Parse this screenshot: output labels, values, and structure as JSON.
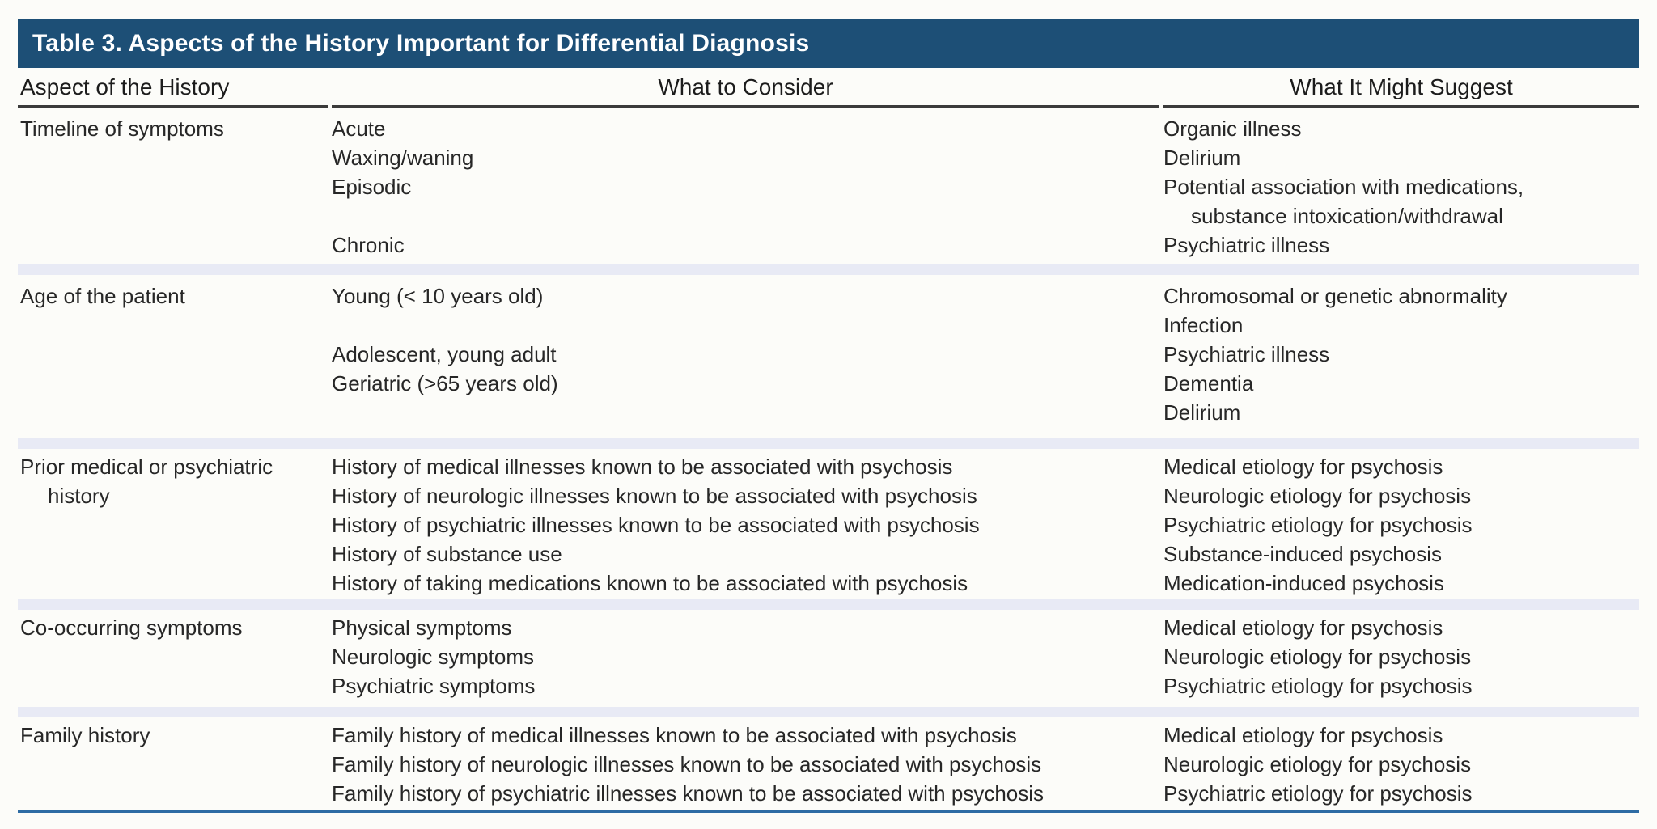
{
  "title": "Table 3. Aspects of the History Important for Differential Diagnosis",
  "columns": [
    "Aspect of the History",
    "What to Consider",
    "What It Might Suggest"
  ],
  "colors": {
    "title_bar": "#1d4f76",
    "title_text": "#ffffff",
    "row_divider": "#e8eaf5",
    "bottom_rule": "#2e6ca4",
    "header_rule": "#3b3b3b",
    "body_text": "#272727",
    "background": "#fcfcf9"
  },
  "rows": [
    {
      "aspect": [
        "Timeline of symptoms"
      ],
      "consider": [
        "Acute",
        "Waxing/waning",
        "Episodic",
        "",
        "Chronic"
      ],
      "suggest": [
        "Organic illness",
        "Delirium",
        "Potential association with medications,",
        {
          "t": "substance intoxication/withdrawal",
          "indent": true
        },
        "Psychiatric illness"
      ]
    },
    {
      "aspect": [
        "Age of the patient"
      ],
      "consider": [
        "Young (< 10 years old)",
        "",
        "Adolescent, young adult",
        "Geriatric (>65 years old)",
        ""
      ],
      "suggest": [
        "Chromosomal or genetic abnormality",
        "Infection",
        "Psychiatric illness",
        "Dementia",
        "Delirium"
      ]
    },
    {
      "aspect": [
        "Prior medical or psychiatric",
        {
          "t": "history",
          "indent": true
        }
      ],
      "consider": [
        "History of medical illnesses known to be associated with psychosis",
        "History of neurologic illnesses known to be associated with psychosis",
        "History of psychiatric illnesses known to be associated with psychosis",
        "History of substance use",
        "History of taking medications known to be associated with psychosis"
      ],
      "suggest": [
        "Medical etiology for psychosis",
        "Neurologic etiology for psychosis",
        "Psychiatric etiology for psychosis",
        "Substance-induced psychosis",
        "Medication-induced psychosis"
      ]
    },
    {
      "aspect": [
        "Co-occurring symptoms"
      ],
      "consider": [
        "Physical symptoms",
        "Neurologic symptoms",
        "Psychiatric symptoms"
      ],
      "suggest": [
        "Medical etiology for psychosis",
        "Neurologic etiology for psychosis",
        "Psychiatric etiology for psychosis"
      ]
    },
    {
      "aspect": [
        "Family history"
      ],
      "consider": [
        "Family history of medical illnesses known to be associated with psychosis",
        "Family history of neurologic illnesses known to be associated with psychosis",
        "Family history of psychiatric illnesses known to be associated with psychosis"
      ],
      "suggest": [
        "Medical etiology for psychosis",
        "Neurologic etiology for psychosis",
        "Psychiatric etiology for psychosis"
      ]
    }
  ]
}
